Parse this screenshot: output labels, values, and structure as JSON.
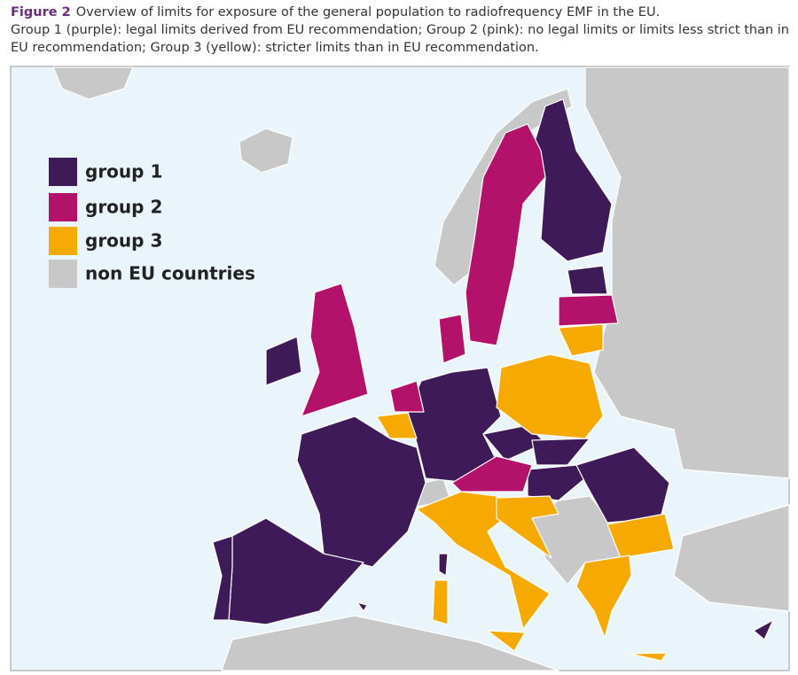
{
  "caption": {
    "label": "Figure 2",
    "text": "Overview of limits for exposure of the general population to radiofrequency EMF in the EU."
  },
  "description": "Group 1 (purple): legal limits derived from EU recommendation; Group 2 (pink): no legal limits or limits less strict than in EU recommendation; Group 3 (yellow): stricter limits than in EU recommendation.",
  "legend": [
    {
      "label": "group 1",
      "color": "#3e1a58"
    },
    {
      "label": "group 2",
      "color": "#b3126b"
    },
    {
      "label": "group 3",
      "color": "#f6aa00"
    },
    {
      "label": "non EU countries",
      "color": "#c8c8c8"
    }
  ]
}
